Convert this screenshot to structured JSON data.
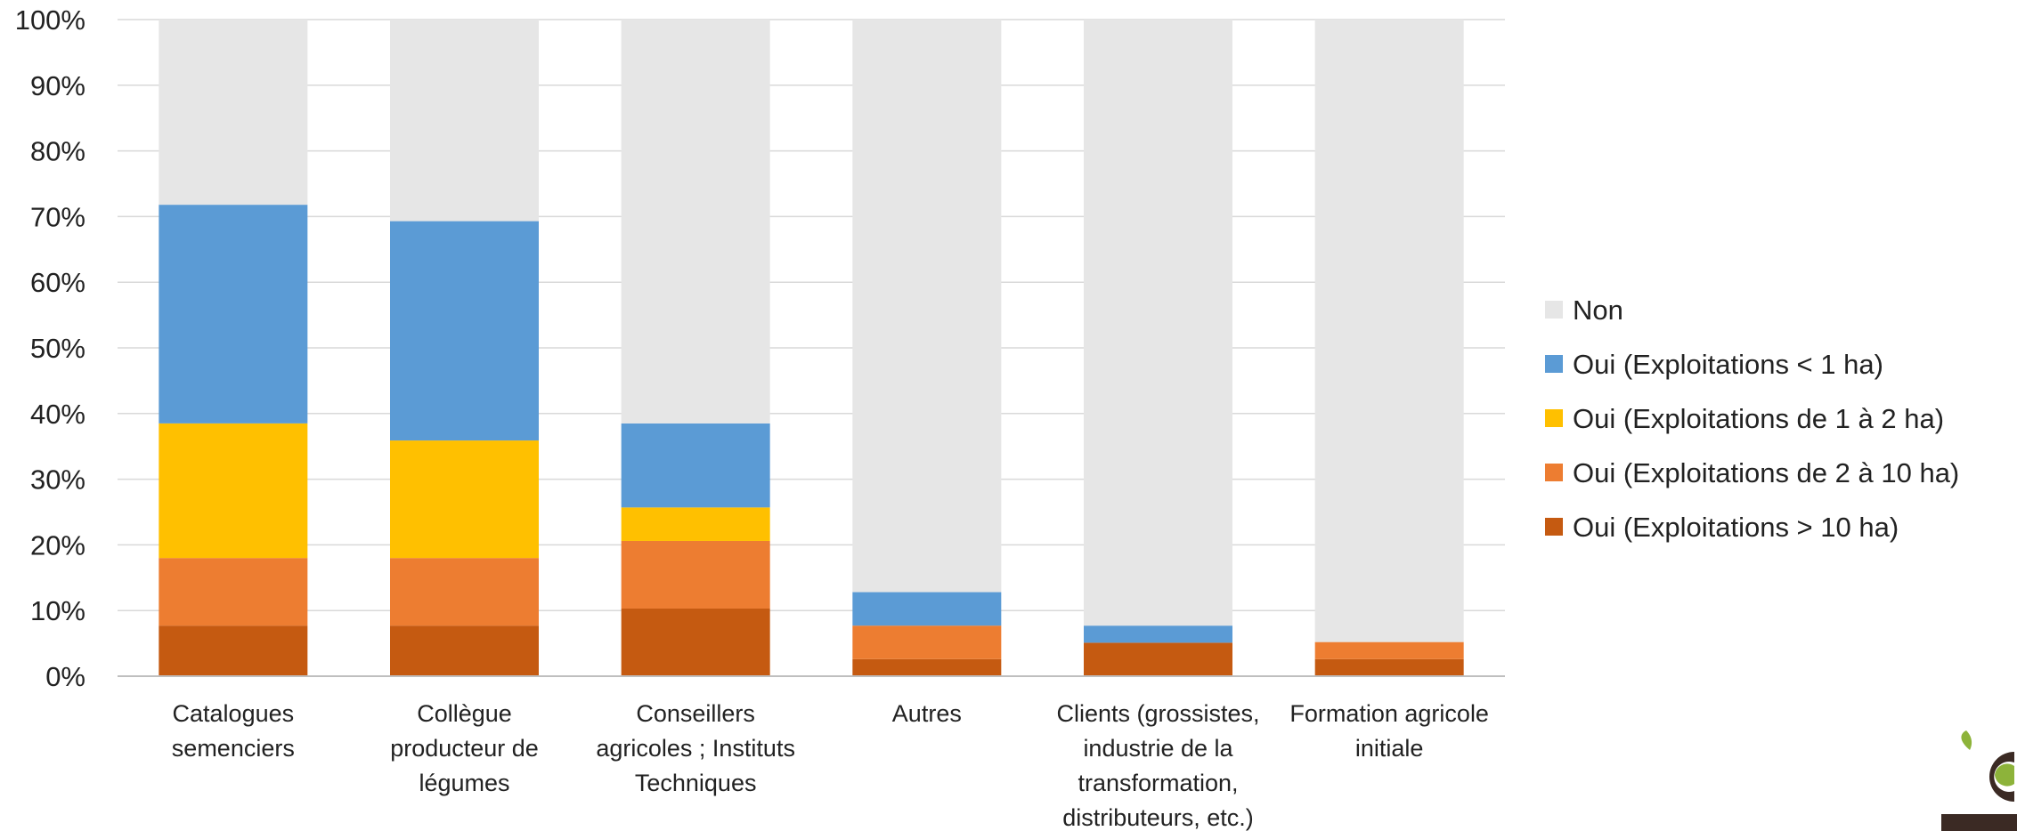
{
  "chart_data": {
    "type": "bar",
    "stacked": true,
    "percent": true,
    "categories": [
      [
        "Catalogues",
        "semenciers"
      ],
      [
        "Collègue",
        "producteur de",
        "légumes"
      ],
      [
        "Conseillers",
        "agricoles ; Instituts",
        "Techniques"
      ],
      [
        "Autres"
      ],
      [
        "Clients (grossistes,",
        "industrie de la",
        "transformation,",
        "distributeurs, etc.)"
      ],
      [
        "Formation agricole",
        "initiale"
      ]
    ],
    "series": [
      {
        "name": "Oui (Exploitations > 10 ha)",
        "color": "#C55A11",
        "values": [
          7.7,
          7.7,
          10.3,
          2.6,
          5.1,
          2.6
        ]
      },
      {
        "name": "Oui (Exploitations de 2 à 10 ha)",
        "color": "#ED7D31",
        "values": [
          10.3,
          10.3,
          10.3,
          5.1,
          0,
          2.6
        ]
      },
      {
        "name": "Oui (Exploitations de 1 à 2 ha)",
        "color": "#FFC000",
        "values": [
          20.5,
          17.9,
          5.1,
          0,
          0,
          0
        ]
      },
      {
        "name": "Oui (Exploitations < 1 ha)",
        "color": "#5B9BD5",
        "values": [
          33.3,
          33.4,
          12.8,
          5.1,
          2.6,
          0
        ]
      },
      {
        "name": "Non",
        "color": "#E6E6E6",
        "values": [
          28.2,
          30.7,
          61.5,
          87.2,
          92.3,
          94.8
        ]
      }
    ],
    "yticks": [
      "0%",
      "10%",
      "20%",
      "30%",
      "40%",
      "50%",
      "60%",
      "70%",
      "80%",
      "90%",
      "100%"
    ],
    "ylim": [
      0,
      100
    ],
    "legend_order": [
      "Non",
      "Oui (Exploitations < 1 ha)",
      "Oui (Exploitations de 1 à 2 ha)",
      "Oui (Exploitations de 2 à 10 ha)",
      "Oui (Exploitations > 10 ha)"
    ],
    "legend_position": "right",
    "grid": true,
    "gridColor": "#D9D9D9"
  },
  "logo": {
    "colors": [
      "#8DB33A",
      "#3B2A24"
    ]
  }
}
